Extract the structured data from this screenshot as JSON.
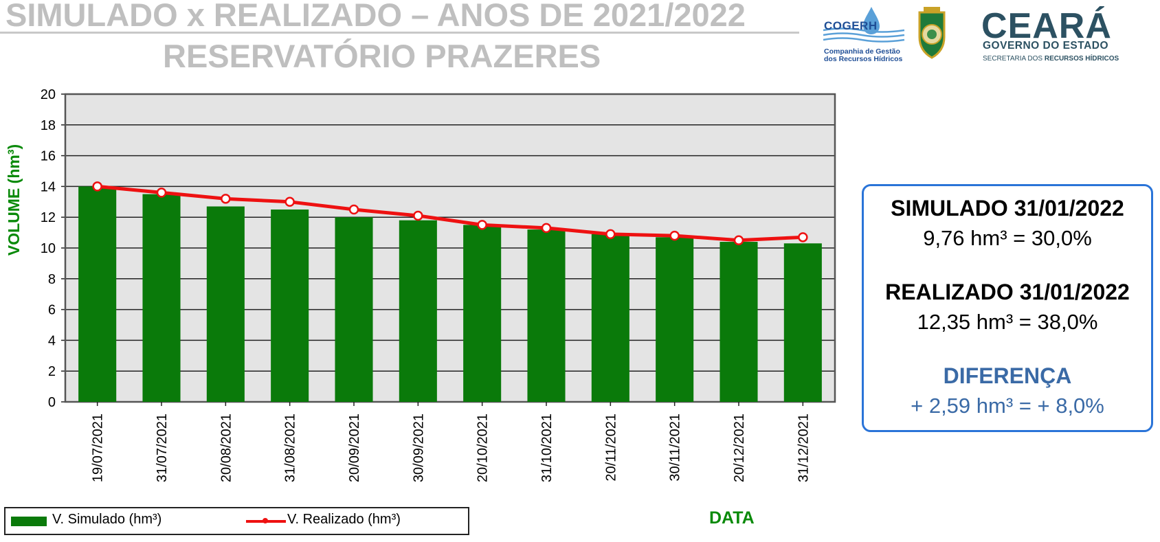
{
  "header": {
    "title_line1": "SIMULADO x REALIZADO – ANOS DE 2021/2022",
    "title_line2": "RESERVATÓRIO PRAZERES"
  },
  "logos": {
    "cogerh_name": "COGERH",
    "cogerh_sub1": "Companhia de Gestão",
    "cogerh_sub2": "dos Recursos Hídricos",
    "ceara_name": "CEARÁ",
    "ceara_gov": "GOVERNO DO ESTADO",
    "ceara_sec1": "SECRETARIA DOS ",
    "ceara_sec2": "RECURSOS HÍDRICOS"
  },
  "summary": {
    "simulado_title": "SIMULADO 31/01/2022",
    "simulado_value": "9,76 hm³ = 30,0%",
    "realizado_title": "REALIZADO 31/01/2022",
    "realizado_value": "12,35 hm³ = 38,0%",
    "diferenca_title": "DIFERENÇA",
    "diferenca_value": "+ 2,59 hm³ = + 8,0%"
  },
  "legend": {
    "simulado_label": "V. Simulado (hm³)",
    "realizado_label": "V. Realizado (hm³)"
  },
  "chart_data": {
    "type": "bar",
    "title": "",
    "xlabel": "DATA",
    "ylabel": "VOLUME (hm³)",
    "ylim": [
      0,
      20
    ],
    "yticks": [
      0,
      2,
      4,
      6,
      8,
      10,
      12,
      14,
      16,
      18,
      20
    ],
    "grid": true,
    "legend_position": "bottom-left",
    "categories": [
      "19/07/2021",
      "31/07/2021",
      "20/08/2021",
      "31/08/2021",
      "20/09/2021",
      "30/09/2021",
      "20/10/2021",
      "31/10/2021",
      "20/11/2021",
      "30/11/2021",
      "20/12/2021",
      "31/12/2021"
    ],
    "series": [
      {
        "name": "V. Simulado (hm³)",
        "kind": "bar",
        "color": "#0a7a0a",
        "values": [
          14.0,
          13.5,
          12.7,
          12.5,
          12.0,
          11.8,
          11.5,
          11.2,
          10.9,
          10.7,
          10.4,
          10.3
        ]
      },
      {
        "name": "V. Realizado (hm³)",
        "kind": "line",
        "color": "#ee1111",
        "values": [
          14.0,
          13.6,
          13.2,
          13.0,
          12.5,
          12.1,
          11.5,
          11.3,
          10.9,
          10.8,
          10.5,
          10.7
        ]
      }
    ]
  },
  "colors": {
    "bar": "#0a7a0a",
    "line": "#ee1111",
    "plot_bg": "#e4e4e4",
    "axis_title": "#0a8a0a",
    "box_border": "#2a74d8",
    "diff_text": "#3a6aa6"
  }
}
